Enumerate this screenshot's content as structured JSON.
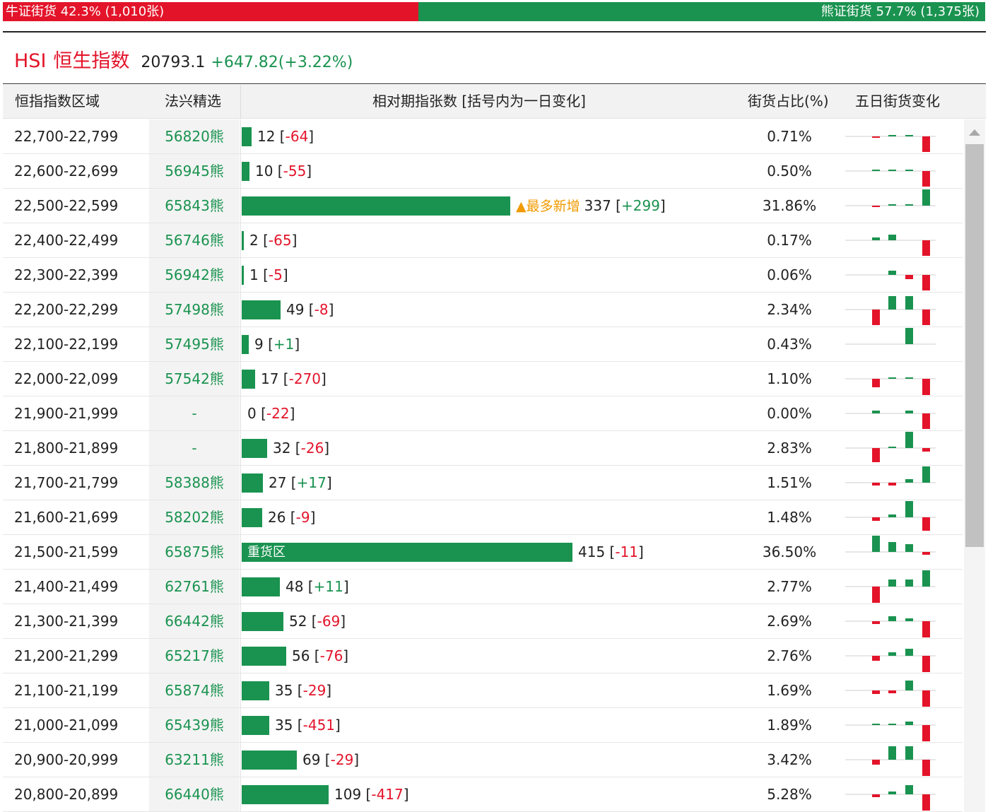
{
  "ratio_bar": {
    "bull_text": "牛证街货 42.3% (1,010张)",
    "bear_text": "熊证街货 57.7% (1,375张)",
    "bull_percent": 42.3,
    "bull_color": "#e3142a",
    "bear_color": "#1a9350"
  },
  "index": {
    "code": "HSI",
    "name": "恒生指数",
    "price": "20793.1",
    "change": "+647.82(+3.22%)"
  },
  "table": {
    "headers": {
      "range": "恒指指数区域",
      "pick": "法兴精选",
      "contracts": "相对期指张数 [括号内为一日变化]",
      "share": "街货占比(%)",
      "five_day": "五日街货变化"
    },
    "max_contracts": 415,
    "rows": [
      {
        "range": "22,700-22,799",
        "pick": "56820熊",
        "contracts": 12,
        "count": "12",
        "change": "-64",
        "share": "0.71%",
        "spark": [
          0,
          -0.04,
          0.06,
          0.04,
          -0.9
        ]
      },
      {
        "range": "22,600-22,699",
        "pick": "56945熊",
        "contracts": 10,
        "count": "10",
        "change": "-55",
        "share": "0.50%",
        "spark": [
          0,
          0.05,
          0.05,
          0.04,
          -0.9
        ]
      },
      {
        "range": "22,500-22,599",
        "pick": "65843熊",
        "contracts": 337,
        "count": "337",
        "change": "+299",
        "share": "31.86%",
        "tag": "▲最多新增",
        "spark": [
          0,
          -0.08,
          0.04,
          0.04,
          0.95
        ]
      },
      {
        "range": "22,400-22,499",
        "pick": "56746熊",
        "contracts": 2,
        "count": "2",
        "change": "-65",
        "share": "0.17%",
        "spark": [
          0,
          0.15,
          0.35,
          0,
          -0.9
        ]
      },
      {
        "range": "22,300-22,399",
        "pick": "56942熊",
        "contracts": 1,
        "count": "1",
        "change": "-5",
        "share": "0.06%",
        "spark": [
          0,
          0,
          0.25,
          -0.25,
          -0.9
        ]
      },
      {
        "range": "22,200-22,299",
        "pick": "57498熊",
        "contracts": 49,
        "count": "49",
        "change": "-8",
        "share": "2.34%",
        "spark": [
          0,
          -0.9,
          0.8,
          0.8,
          -0.9
        ]
      },
      {
        "range": "22,100-22,199",
        "pick": "57495熊",
        "contracts": 9,
        "count": "9",
        "change": "+1",
        "share": "0.43%",
        "spark": [
          0,
          0,
          0,
          0.95,
          0
        ]
      },
      {
        "range": "22,000-22,099",
        "pick": "57542熊",
        "contracts": 17,
        "count": "17",
        "change": "-270",
        "share": "1.10%",
        "spark": [
          0,
          -0.5,
          0.04,
          0.04,
          -0.95
        ]
      },
      {
        "range": "21,900-21,999",
        "pick": "-",
        "contracts": 0,
        "count": "0",
        "change": "-22",
        "share": "0.00%",
        "spark": [
          0,
          0.15,
          0,
          0.15,
          -0.9
        ]
      },
      {
        "range": "21,800-21,899",
        "pick": "-",
        "contracts": 32,
        "count": "32",
        "change": "-26",
        "share": "2.83%",
        "spark": [
          0,
          -0.85,
          0.04,
          0.95,
          -0.2
        ]
      },
      {
        "range": "21,700-21,799",
        "pick": "58388熊",
        "contracts": 27,
        "count": "27",
        "change": "+17",
        "share": "1.51%",
        "spark": [
          0,
          -0.15,
          -0.15,
          0.2,
          0.95
        ]
      },
      {
        "range": "21,600-21,699",
        "pick": "58202熊",
        "contracts": 26,
        "count": "26",
        "change": "-9",
        "share": "1.48%",
        "spark": [
          0,
          -0.2,
          0.15,
          0.95,
          -0.8
        ]
      },
      {
        "range": "21,500-21,599",
        "pick": "65875熊",
        "contracts": 415,
        "count": "415",
        "change": "-11",
        "share": "36.50%",
        "label": "重货区",
        "spark": [
          0,
          0.95,
          0.6,
          0.45,
          -0.15
        ]
      },
      {
        "range": "21,400-21,499",
        "pick": "62761熊",
        "contracts": 48,
        "count": "48",
        "change": "+11",
        "share": "2.77%",
        "spark": [
          0,
          -0.95,
          0.4,
          0.4,
          0.95
        ]
      },
      {
        "range": "21,300-21,399",
        "pick": "66442熊",
        "contracts": 52,
        "count": "52",
        "change": "-69",
        "share": "2.69%",
        "spark": [
          0,
          -0.15,
          0.3,
          0.15,
          -0.95
        ]
      },
      {
        "range": "21,200-21,299",
        "pick": "65217熊",
        "contracts": 56,
        "count": "56",
        "change": "-76",
        "share": "2.76%",
        "spark": [
          0,
          -0.3,
          0.2,
          0.4,
          -0.95
        ]
      },
      {
        "range": "21,100-21,199",
        "pick": "65874熊",
        "contracts": 35,
        "count": "35",
        "change": "-29",
        "share": "1.69%",
        "spark": [
          0,
          -0.2,
          -0.15,
          0.6,
          -0.95
        ]
      },
      {
        "range": "21,000-21,099",
        "pick": "65439熊",
        "contracts": 35,
        "count": "35",
        "change": "-451",
        "share": "1.89%",
        "spark": [
          0,
          0.04,
          0.04,
          0.2,
          -0.95
        ]
      },
      {
        "range": "20,900-20,999",
        "pick": "63211熊",
        "contracts": 69,
        "count": "69",
        "change": "-29",
        "share": "3.42%",
        "spark": [
          0,
          -0.3,
          0.8,
          0.8,
          -0.95
        ]
      },
      {
        "range": "20,800-20,899",
        "pick": "66440熊",
        "contracts": 109,
        "count": "109",
        "change": "-417",
        "share": "5.28%",
        "spark": [
          0,
          -0.15,
          0.15,
          0.55,
          -0.95
        ]
      }
    ]
  }
}
